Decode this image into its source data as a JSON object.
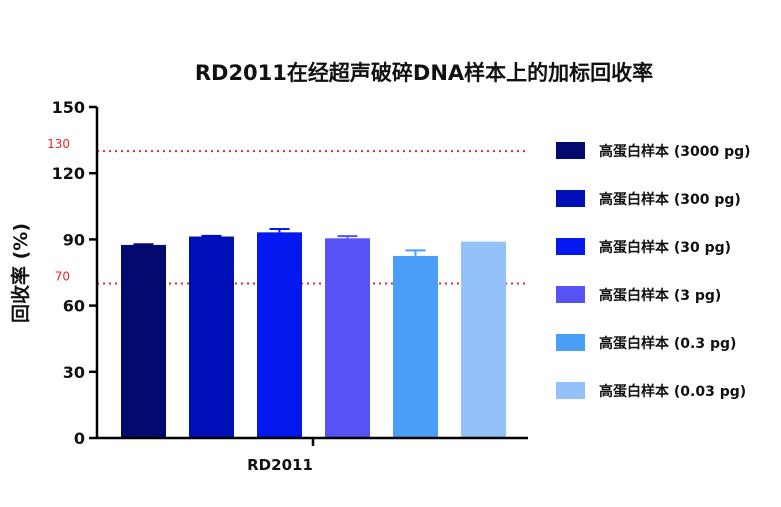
{
  "chart_data": {
    "type": "bar",
    "title": "RD2011在经超声破碎DNA样本上的加标回收率",
    "xlabel": "RD2011",
    "ylabel": "回收率 (%)",
    "ylim": [
      0,
      150
    ],
    "yticks": [
      0,
      30,
      60,
      90,
      120,
      150
    ],
    "grid": false,
    "legend_position": "right",
    "reference_lines": [
      {
        "label": "130",
        "value": 130,
        "color": "#e8262b"
      },
      {
        "label": "70",
        "value": 70,
        "color": "#e8262b"
      }
    ],
    "series": [
      {
        "name": "高蛋白样本 (3000 pg)",
        "value": 87.5,
        "error": 0.3,
        "color": "#020a6e"
      },
      {
        "name": "高蛋白样本 (300 pg)",
        "value": 91.3,
        "error": 0.3,
        "color": "#0010b8"
      },
      {
        "name": "高蛋白样本 (30 pg)",
        "value": 93.2,
        "error": 1.5,
        "color": "#0418f0"
      },
      {
        "name": "高蛋白样本 (3 pg)",
        "value": 90.5,
        "error": 1.0,
        "color": "#5752f5"
      },
      {
        "name": "高蛋白样本 (0.3 pg)",
        "value": 82.5,
        "error": 2.5,
        "color": "#4a9ef8"
      },
      {
        "name": "高蛋白样本 (0.03 pg)",
        "value": 89.0,
        "error": 0,
        "color": "#93c2fa"
      }
    ]
  }
}
